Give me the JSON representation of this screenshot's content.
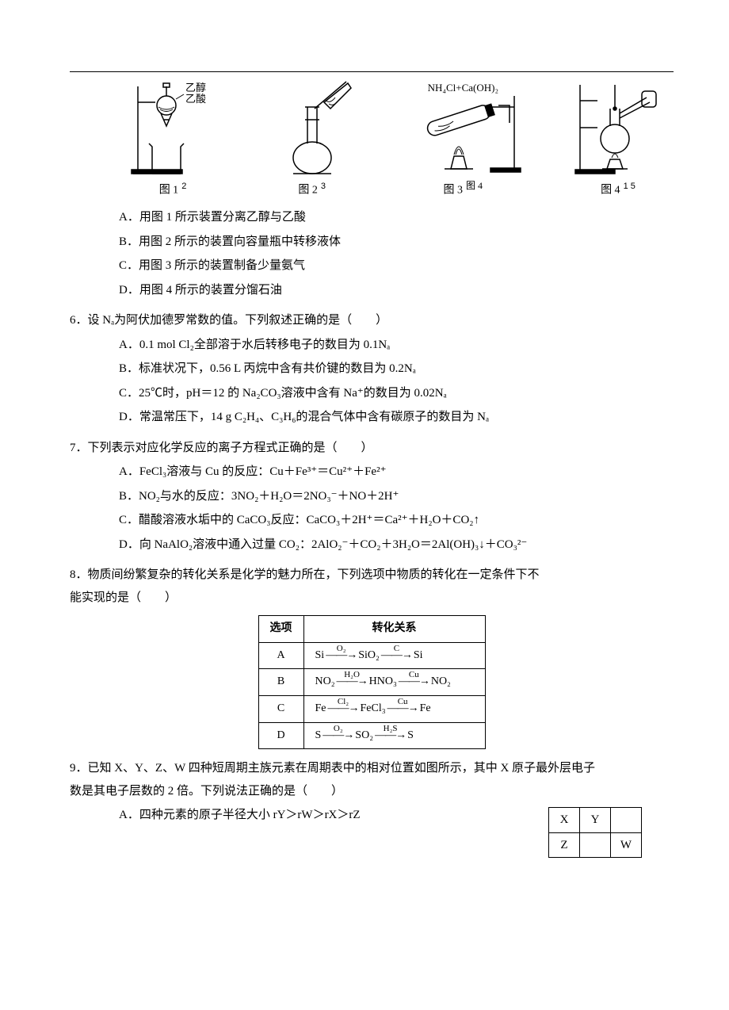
{
  "figures": {
    "labels_top": {
      "fig1_top1": "乙醇",
      "fig1_top2": "乙酸",
      "fig3_top": "NH₄Cl+Ca(OH)₂"
    },
    "captions": {
      "c1": "图 1",
      "c1s": "2",
      "c2": "图 2",
      "c2s": "3",
      "c3": "图 3",
      "c3s": "图 4",
      "c4": "图 4",
      "c4s": "1 5"
    }
  },
  "q5_opts": {
    "a": "A．用图 1 所示装置分离乙醇与乙酸",
    "b": "B．用图 2 所示的装置向容量瓶中转移液体",
    "c": "C．用图 3 所示的装置制备少量氨气",
    "d": "D．用图 4 所示的装置分馏石油"
  },
  "q6": {
    "stem": "6．设 Nₐ为阿伏加德罗常数的值。下列叙述正确的是（　　）",
    "a": "A．0.1 mol Cl₂全部溶于水后转移电子的数目为 0.1Nₐ",
    "b": "B．标准状况下，0.56 L 丙烷中含有共价键的数目为 0.2Nₐ",
    "c": "C．25℃时，pH＝12 的 Na₂CO₃溶液中含有 Na⁺的数目为 0.02Nₐ",
    "d": "D．常温常压下，14 g C₂H₄、C₃H₆的混合气体中含有碳原子的数目为 Nₐ"
  },
  "q7": {
    "stem": "7．下列表示对应化学反应的离子方程式正确的是（　　）",
    "a": "A．FeCl₃溶液与 Cu 的反应：Cu＋Fe³⁺＝Cu²⁺＋Fe²⁺",
    "b": "B．NO₂与水的反应：3NO₂＋H₂O＝2NO₃⁻＋NO＋2H⁺",
    "c": "C．醋酸溶液水垢中的 CaCO₃反应：CaCO₃＋2H⁺＝Ca²⁺＋H₂O＋CO₂↑",
    "d": "D．向 NaAlO₂溶液中通入过量 CO₂：2AlO₂⁻＋CO₂＋3H₂O＝2Al(OH)₃↓＋CO₃²⁻"
  },
  "q8": {
    "stem1": "8．物质间纷繁复杂的转化关系是化学的魅力所在，下列选项中物质的转化在一定条件下不",
    "stem2": "能实现的是（　　）",
    "table": {
      "head1": "选项",
      "head2": "转化关系",
      "rows": [
        {
          "opt": "A",
          "seq": [
            {
              "s": "Si",
              "r": "O₂"
            },
            {
              "s": "SiO₂",
              "r": "C"
            },
            {
              "s": "Si"
            }
          ]
        },
        {
          "opt": "B",
          "seq": [
            {
              "s": "NO₂",
              "r": "H₂O"
            },
            {
              "s": "HNO₃",
              "r": "Cu"
            },
            {
              "s": "NO₂"
            }
          ]
        },
        {
          "opt": "C",
          "seq": [
            {
              "s": "Fe",
              "r": "Cl₂"
            },
            {
              "s": "FeCl₃",
              "r": "Cu"
            },
            {
              "s": "Fe"
            }
          ]
        },
        {
          "opt": "D",
          "seq": [
            {
              "s": "S",
              "r": "O₂"
            },
            {
              "s": "SO₂",
              "r": "H₂S"
            },
            {
              "s": "S"
            }
          ]
        }
      ]
    }
  },
  "q9": {
    "stem1": "9．已知 X、Y、Z、W 四种短周期主族元素在周期表中的相对位置如图所示，其中 X 原子最外层电子",
    "stem2": "数是其电子层数的 2 倍。下列说法正确的是（　　）",
    "a": "A．四种元素的原子半径大小 rY＞rW＞rX＞rZ",
    "grid": {
      "r1c1": "X",
      "r1c2": "Y",
      "r1c3": "",
      "r2c1": "Z",
      "r2c2": "",
      "r2c3": "W"
    }
  }
}
